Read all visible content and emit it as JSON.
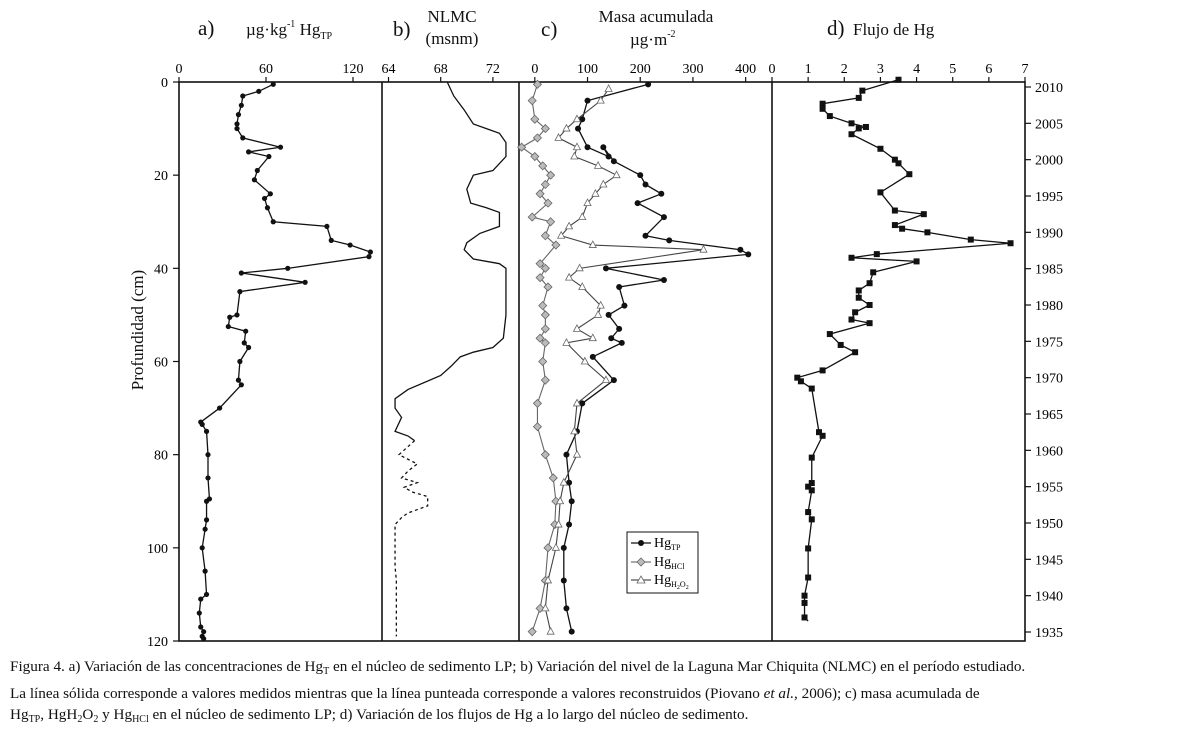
{
  "panel_a": {
    "letter": "a)",
    "label_prefix": "µg·kg",
    "label_exp": "-1",
    "label_hg": " Hg",
    "label_sub": "TP"
  },
  "panel_b": {
    "letter": "b)",
    "label_line1": "NLMC",
    "label_line2": "(msnm)"
  },
  "panel_c": {
    "letter": "c)",
    "label_line1": "Masa acumulada",
    "label_line2": "µg·m",
    "label_exp": "-2"
  },
  "panel_d": {
    "letter": "d)",
    "label": "Flujo de Hg"
  },
  "y_axis_label": "Profundidad (cm)",
  "legend": {
    "tp": {
      "main": "Hg",
      "sub": "TP"
    },
    "hcl": {
      "main": "Hg",
      "sub": "HCl"
    },
    "h2o2": {
      "main": "Hg",
      "sub": "H",
      "sub2": "2",
      "sub3": "O",
      "sub4": "2"
    }
  },
  "caption": {
    "l1a": "Figura 4. a) Variación de las concentraciones de Hg",
    "l1b": "T",
    "l1c": " en el núcleo de sedimento LP; b) Variación del nivel de la Laguna Mar Chiquita (NLMC) en el período estudiado.",
    "l2a": "La línea sólida corresponde a valores medidos mientras que la línea punteada corresponde a valores reconstruidos (Piovano ",
    "l2b": "et al.",
    "l2c": ", 2006); c) masa acumulada de",
    "l3a": "Hg",
    "l3b": "TP",
    "l3c": ", HgH",
    "l3d": "2",
    "l3e": "O",
    "l3f": "2",
    "l3g": " y Hg",
    "l3h": "HCl",
    "l3i": " en el núcleo de sedimento LP; d) Variación de los flujos de Hg a lo largo del núcleo de sedimento."
  },
  "chart_data": [
    {
      "type": "line",
      "panel": "a",
      "xlabel": "µg·kg-1 HgTP",
      "ylabel": "Profundidad (cm)",
      "xlim": [
        0,
        140
      ],
      "ylim": [
        120,
        0
      ],
      "x_ticks": [
        0,
        60,
        120
      ],
      "y_ticks": [
        0,
        20,
        40,
        60,
        80,
        100,
        120
      ],
      "series": [
        {
          "name": "HgTP",
          "x": [
            65,
            55,
            44,
            43,
            41,
            40,
            40,
            44,
            70,
            48,
            62,
            54,
            52,
            63,
            59,
            61,
            65,
            102,
            105,
            118,
            132,
            131,
            75,
            43,
            87,
            42,
            40,
            35,
            34,
            46,
            45,
            48,
            42,
            41,
            43,
            28,
            15,
            16,
            19,
            20,
            20,
            21,
            19,
            19,
            18,
            16,
            18,
            19,
            15,
            14,
            15,
            17,
            16,
            17
          ],
          "y": [
            0.5,
            2,
            3,
            5,
            7,
            9,
            10,
            12,
            14,
            15,
            16,
            19,
            21,
            24,
            25,
            27,
            30,
            31,
            34,
            35,
            36.5,
            37.5,
            40,
            41,
            43,
            45,
            50,
            50.5,
            52.5,
            53.5,
            56,
            57,
            60,
            64,
            65,
            70,
            73,
            73.5,
            75,
            80,
            85,
            89.5,
            90,
            94,
            96,
            100,
            105,
            110,
            111,
            114,
            117,
            118,
            119,
            119.5
          ]
        }
      ]
    },
    {
      "type": "line",
      "panel": "b",
      "xlabel": "NLMC (msnm)",
      "xlim": [
        63.5,
        74
      ],
      "ylim": [
        120,
        0
      ],
      "x_ticks": [
        64,
        68,
        72
      ],
      "series": [
        {
          "name": "medido",
          "x": [
            68.5,
            69,
            69.8,
            70.5,
            71.5,
            72.5,
            73,
            73,
            72,
            70.5,
            70,
            70.3,
            71.5,
            72.5,
            72.5,
            71,
            70,
            69.8,
            70.5,
            72.5,
            73,
            73,
            73,
            72.8,
            72,
            70.5,
            69.5,
            68.8,
            68,
            65.5,
            64.5,
            64.5,
            65,
            64.5,
            65.5,
            66
          ],
          "y": [
            0,
            3,
            6,
            9,
            10,
            11,
            13,
            16,
            19,
            20,
            23,
            26,
            27,
            28,
            31,
            32.5,
            34.5,
            36,
            38,
            39,
            40,
            44,
            50,
            55,
            57,
            58,
            59,
            61,
            63,
            66,
            68,
            70,
            72,
            75,
            76,
            77
          ]
        },
        {
          "name": "reconstruido",
          "x": [
            66,
            64.8,
            66.2,
            65.5,
            65,
            66.2,
            65.2,
            65.8,
            67,
            67,
            65.5,
            65,
            64.5,
            64.5,
            64.6,
            64.6
          ],
          "y": [
            77,
            80,
            82,
            83.5,
            85,
            86,
            87,
            88,
            89,
            91,
            92.5,
            93.5,
            95,
            104,
            107,
            119
          ]
        }
      ]
    },
    {
      "type": "line",
      "panel": "c",
      "xlabel": "Masa acumulada µg·m-2",
      "xlim": [
        -30,
        450
      ],
      "ylim": [
        120,
        0
      ],
      "x_ticks": [
        0,
        100,
        200,
        300,
        400
      ],
      "series": [
        {
          "name": "HgTP",
          "x": [
            215,
            100,
            90,
            82,
            100,
            140,
            130,
            150,
            200,
            210,
            240,
            195,
            245,
            210,
            255,
            390,
            405,
            135,
            245,
            160,
            170,
            140,
            160,
            145,
            165,
            110,
            150,
            90,
            80,
            60,
            65,
            70,
            65,
            55,
            55,
            60,
            70
          ],
          "y": [
            0.5,
            4,
            8,
            10,
            14,
            16,
            14,
            17,
            20,
            22,
            24,
            26,
            29,
            33,
            34,
            36,
            37,
            40,
            42.5,
            44,
            48,
            50,
            53,
            55,
            56,
            59,
            64,
            69,
            75,
            80,
            86,
            90,
            95,
            100,
            107,
            113,
            118
          ]
        },
        {
          "name": "HgHCl",
          "x": [
            5,
            -5,
            0,
            20,
            5,
            -25,
            0,
            15,
            30,
            20,
            10,
            25,
            -5,
            30,
            20,
            40,
            10,
            20,
            10,
            25,
            15,
            20,
            20,
            10,
            20,
            15,
            20,
            5,
            5,
            20,
            35,
            40,
            38,
            25,
            20,
            10,
            -5
          ],
          "y": [
            0.5,
            4,
            8,
            10,
            12,
            14,
            16,
            18,
            20,
            22,
            24,
            26,
            29,
            30,
            33,
            35,
            39,
            40,
            42,
            44,
            48,
            50,
            53,
            55,
            56,
            60,
            64,
            69,
            74,
            80,
            85,
            90,
            95,
            100,
            107,
            113,
            118
          ]
        },
        {
          "name": "HgH2O2",
          "x": [
            140,
            125,
            80,
            60,
            45,
            80,
            75,
            120,
            155,
            130,
            115,
            100,
            90,
            65,
            50,
            110,
            320,
            85,
            65,
            90,
            125,
            120,
            80,
            110,
            60,
            95,
            135,
            80,
            75,
            80,
            55,
            48,
            45,
            40,
            25,
            20,
            30
          ],
          "y": [
            1.5,
            4,
            8,
            10,
            12,
            14,
            16,
            18,
            20,
            22,
            24,
            26,
            29,
            31,
            33,
            35,
            36,
            40,
            42,
            44,
            48,
            50,
            53,
            55,
            56,
            60,
            64,
            69,
            75,
            80,
            86,
            90,
            95,
            100,
            107,
            113,
            118
          ]
        }
      ]
    },
    {
      "type": "line",
      "panel": "d",
      "xlabel": "Flujo de Hg",
      "xlim": [
        0,
        7
      ],
      "x_ticks": [
        0,
        1,
        2,
        3,
        4,
        5,
        6,
        7
      ],
      "y2_label_ticks": [
        2010,
        2005,
        2000,
        1995,
        1990,
        1985,
        1980,
        1975,
        1970,
        1965,
        1960,
        1955,
        1950,
        1945,
        1940,
        1935
      ],
      "series": [
        {
          "name": "Hg",
          "x": [
            3.5,
            2.5,
            2.4,
            1.4,
            1.4,
            1.6,
            2.2,
            2.6,
            2.4,
            2.2,
            3.0,
            3.4,
            3.5,
            3.8,
            3.0,
            3.4,
            4.2,
            3.4,
            3.6,
            4.3,
            5.5,
            6.6,
            2.9,
            2.2,
            4.0,
            2.8,
            2.7,
            2.4,
            2.4,
            2.7,
            2.3,
            2.2,
            2.7,
            1.6,
            1.9,
            2.3,
            1.4,
            0.7,
            0.8,
            1.1,
            1.3,
            1.4,
            1.1,
            1.1,
            1.0,
            1.1,
            1.0,
            1.1,
            1.0,
            1.0,
            0.9,
            0.9,
            0.9,
            1.0
          ],
          "y": [
            2011,
            2009.5,
            2008.5,
            2007.7,
            2007,
            2006,
            2005,
            2004.5,
            2004.3,
            2003.5,
            2001.5,
            2000,
            1999.5,
            1998,
            1995.5,
            1993,
            1992.5,
            1991,
            1990.5,
            1990,
            1989,
            1988.5,
            1987,
            1986.5,
            1986,
            1984.5,
            1983,
            1982,
            1981,
            1980,
            1979,
            1978,
            1977.5,
            1976,
            1974.5,
            1973.5,
            1971,
            1970,
            1969.5,
            1968.5,
            1962.5,
            1962,
            1959,
            1955.5,
            1955,
            1954.5,
            1951.5,
            1950.5,
            1946.5,
            1942.5,
            1940,
            1939,
            1937,
            1936.5
          ]
        }
      ]
    }
  ]
}
